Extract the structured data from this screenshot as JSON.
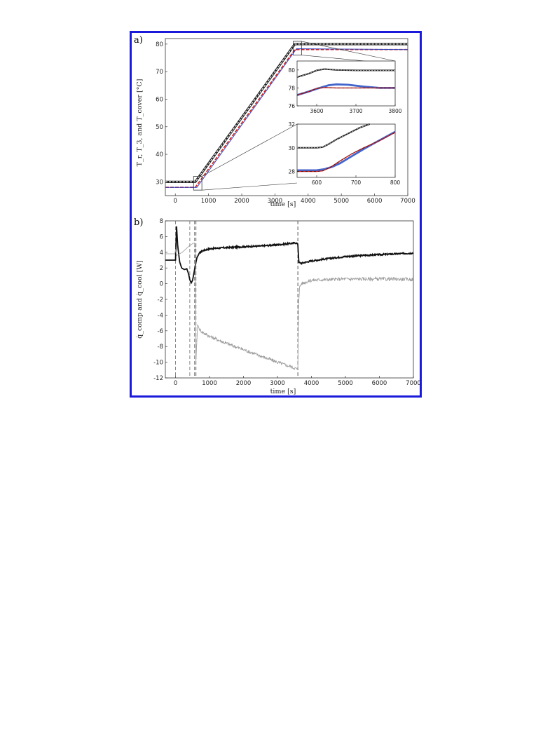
{
  "chart_data": [
    {
      "panel": "a)",
      "type": "line",
      "xlabel": "time [s]",
      "ylabel": "T_r, T_3, and T_cover [°C]",
      "xlim": [
        -300,
        7000
      ],
      "ylim": [
        25,
        82
      ],
      "xticks": [
        0,
        1000,
        2000,
        3000,
        4000,
        5000,
        6000,
        7000
      ],
      "yticks": [
        30,
        40,
        50,
        60,
        70,
        80
      ],
      "series": [
        {
          "color": "#222222",
          "points": [
            [
              -300,
              30
            ],
            [
              600,
              30
            ],
            [
              3600,
              80
            ],
            [
              7000,
              80
            ]
          ]
        },
        {
          "color": "#cc2222",
          "points": [
            [
              -300,
              28
            ],
            [
              600,
              28
            ],
            [
              3600,
              78
            ],
            [
              7000,
              78
            ]
          ]
        },
        {
          "color": "#3344bb",
          "points": [
            [
              -300,
              28
            ],
            [
              650,
              28
            ],
            [
              3650,
              78.3
            ],
            [
              7000,
              78
            ]
          ]
        }
      ],
      "zoom_boxes": [
        {
          "x": [
            550,
            800
          ],
          "y": [
            27,
            32
          ]
        },
        {
          "x": [
            3550,
            3800
          ],
          "y": [
            76,
            81
          ]
        }
      ],
      "insets": [
        {
          "xlim": [
            3550,
            3800
          ],
          "ylim": [
            76,
            81
          ],
          "xticks": [
            3600,
            3700,
            3800
          ],
          "yticks": [
            76,
            78,
            80
          ],
          "series": [
            {
              "color": "#222222",
              "points": [
                [
                  3550,
                  79.2
                ],
                [
                  3580,
                  79.6
                ],
                [
                  3600,
                  79.95
                ],
                [
                  3620,
                  80.1
                ],
                [
                  3650,
                  80.0
                ],
                [
                  3700,
                  79.95
                ],
                [
                  3800,
                  79.95
                ]
              ]
            },
            {
              "color": "#4466cc",
              "points": [
                [
                  3550,
                  77.2
                ],
                [
                  3580,
                  77.6
                ],
                [
                  3600,
                  77.9
                ],
                [
                  3630,
                  78.3
                ],
                [
                  3650,
                  78.4
                ],
                [
                  3680,
                  78.35
                ],
                [
                  3720,
                  78.15
                ],
                [
                  3760,
                  78.0
                ],
                [
                  3800,
                  78.0
                ]
              ]
            },
            {
              "color": "#cc2222",
              "points": [
                [
                  3550,
                  77.2
                ],
                [
                  3580,
                  77.6
                ],
                [
                  3600,
                  77.95
                ],
                [
                  3620,
                  78.05
                ],
                [
                  3650,
                  78.0
                ],
                [
                  3700,
                  78.0
                ],
                [
                  3800,
                  78.0
                ]
              ]
            }
          ]
        },
        {
          "xlim": [
            550,
            800
          ],
          "ylim": [
            27.5,
            32
          ],
          "xticks": [
            600,
            700,
            800
          ],
          "yticks": [
            28,
            30,
            32
          ],
          "series": [
            {
              "color": "#222222",
              "points": [
                [
                  550,
                  30.0
                ],
                [
                  600,
                  30.0
                ],
                [
                  615,
                  30.05
                ],
                [
                  630,
                  30.3
                ],
                [
                  650,
                  30.7
                ],
                [
                  680,
                  31.2
                ],
                [
                  710,
                  31.7
                ],
                [
                  735,
                  32.0
                ]
              ]
            },
            {
              "color": "#4466cc",
              "points": [
                [
                  550,
                  28.1
                ],
                [
                  600,
                  28.1
                ],
                [
                  620,
                  28.2
                ],
                [
                  640,
                  28.4
                ],
                [
                  660,
                  28.7
                ],
                [
                  690,
                  29.3
                ],
                [
                  720,
                  29.9
                ],
                [
                  750,
                  30.45
                ],
                [
                  800,
                  31.35
                ]
              ]
            },
            {
              "color": "#cc2222",
              "points": [
                [
                  550,
                  28.0
                ],
                [
                  600,
                  28.0
                ],
                [
                  615,
                  28.05
                ],
                [
                  635,
                  28.35
                ],
                [
                  660,
                  28.9
                ],
                [
                  690,
                  29.5
                ],
                [
                  720,
                  30.0
                ],
                [
                  760,
                  30.6
                ],
                [
                  800,
                  31.3
                ]
              ]
            }
          ]
        }
      ]
    },
    {
      "panel": "b)",
      "type": "line",
      "xlabel": "time [s]",
      "ylabel": "q̇_comp and q̇_cool [W]",
      "xlim": [
        -300,
        7000
      ],
      "ylim": [
        -12,
        8
      ],
      "xticks": [
        0,
        1000,
        2000,
        3000,
        4000,
        5000,
        6000,
        7000
      ],
      "yticks": [
        -12,
        -10,
        -8,
        -6,
        -4,
        -2,
        0,
        2,
        4,
        6,
        8
      ],
      "vlines": [
        0,
        420,
        560,
        600,
        3600
      ],
      "series": [
        {
          "color": "#111111",
          "points": [
            [
              -300,
              3.0
            ],
            [
              -20,
              3.0
            ],
            [
              0,
              3.0
            ],
            [
              30,
              7.3
            ],
            [
              60,
              5.0
            ],
            [
              120,
              2.8
            ],
            [
              180,
              2.0
            ],
            [
              260,
              1.8
            ],
            [
              330,
              1.9
            ],
            [
              380,
              1.3
            ],
            [
              420,
              0.5
            ],
            [
              460,
              0.1
            ],
            [
              500,
              0.4
            ],
            [
              540,
              1.3
            ],
            [
              580,
              2.3
            ],
            [
              600,
              2.7
            ],
            [
              630,
              3.3
            ],
            [
              700,
              3.9
            ],
            [
              800,
              4.2
            ],
            [
              1000,
              4.45
            ],
            [
              1500,
              4.6
            ],
            [
              2000,
              4.7
            ],
            [
              2500,
              4.8
            ],
            [
              3000,
              4.95
            ],
            [
              3550,
              5.2
            ],
            [
              3600,
              5.0
            ],
            [
              3630,
              2.7
            ],
            [
              3700,
              2.6
            ],
            [
              4000,
              2.9
            ],
            [
              4500,
              3.2
            ],
            [
              5000,
              3.45
            ],
            [
              5500,
              3.6
            ],
            [
              6000,
              3.7
            ],
            [
              6500,
              3.8
            ],
            [
              7000,
              3.9
            ]
          ]
        },
        {
          "color": "#999999",
          "points": [
            [
              -300,
              3.8
            ],
            [
              -20,
              3.8
            ],
            [
              0,
              4.4
            ],
            [
              30,
              3.6
            ],
            [
              80,
              3.7
            ],
            [
              200,
              4.0
            ],
            [
              300,
              4.4
            ],
            [
              400,
              4.8
            ],
            [
              500,
              5.1
            ],
            [
              560,
              5.2
            ],
            [
              580,
              4.2
            ],
            [
              600,
              -10.0
            ],
            [
              620,
              -8.0
            ],
            [
              650,
              -5.2
            ],
            [
              700,
              -5.8
            ],
            [
              800,
              -6.2
            ],
            [
              1000,
              -6.7
            ],
            [
              1500,
              -7.6
            ],
            [
              2000,
              -8.4
            ],
            [
              2500,
              -9.2
            ],
            [
              3000,
              -10.0
            ],
            [
              3550,
              -10.8
            ],
            [
              3600,
              -11.0
            ],
            [
              3620,
              -2.5
            ],
            [
              3650,
              -0.5
            ],
            [
              3700,
              0.0
            ],
            [
              4000,
              0.45
            ],
            [
              5000,
              0.6
            ],
            [
              6000,
              0.6
            ],
            [
              7000,
              0.55
            ]
          ]
        }
      ]
    }
  ]
}
